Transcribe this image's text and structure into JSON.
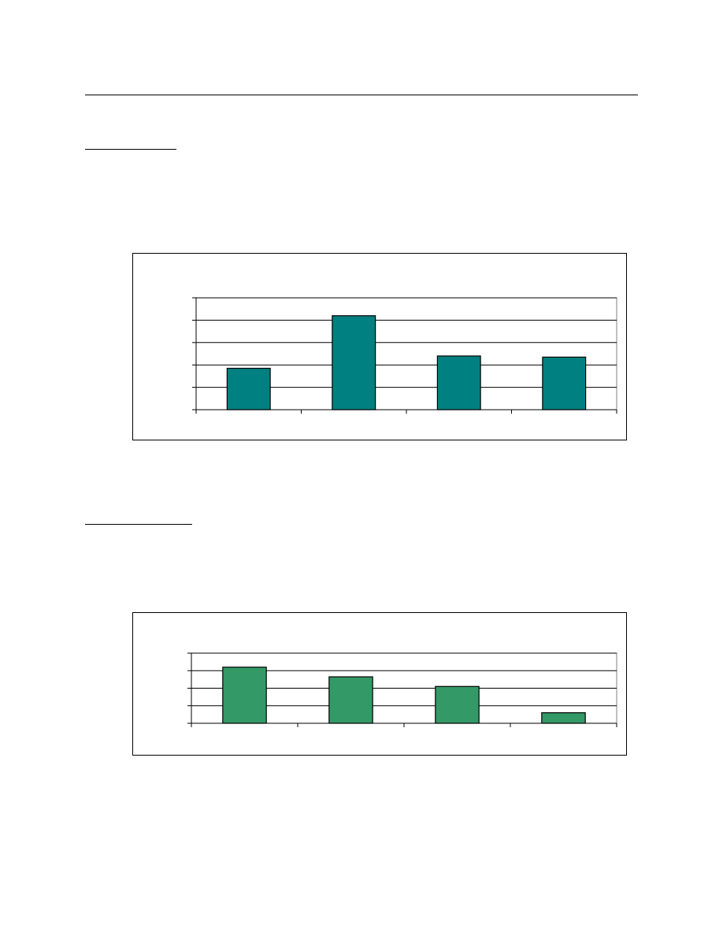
{
  "colors": {
    "chart1_bar": "#008080",
    "chart2_bar": "#339966",
    "gridline": "#000000",
    "frame": "#000000"
  },
  "chart_data": [
    {
      "type": "bar",
      "categories": [
        "",
        "",
        "",
        ""
      ],
      "values": [
        1.85,
        4.2,
        2.4,
        2.35
      ],
      "ylim": [
        0,
        5
      ],
      "grid": true,
      "title": "",
      "xlabel": "",
      "ylabel": ""
    },
    {
      "type": "bar",
      "categories": [
        "",
        "",
        "",
        ""
      ],
      "values": [
        3.2,
        2.65,
        2.1,
        0.6
      ],
      "ylim": [
        0,
        4
      ],
      "grid": true,
      "title": "",
      "xlabel": "",
      "ylabel": ""
    }
  ]
}
